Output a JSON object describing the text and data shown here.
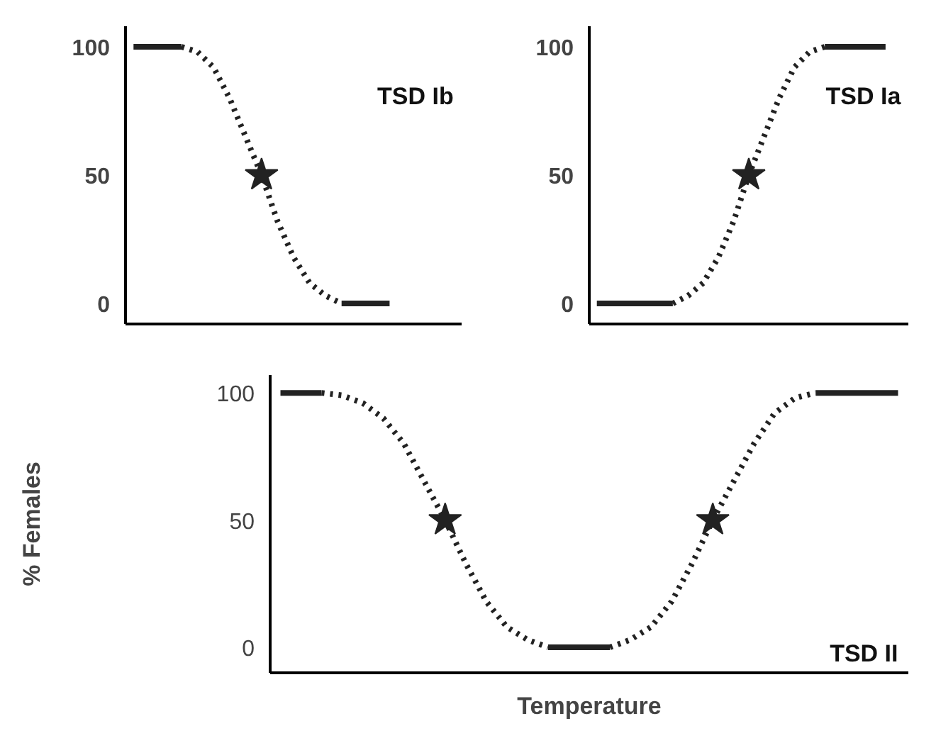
{
  "chart_data": [
    {
      "type": "line",
      "title": "TSD Ib",
      "categories": [
        null,
        null,
        null,
        null,
        null,
        null,
        null,
        null,
        null,
        null,
        null,
        null,
        null,
        null,
        null,
        null,
        null,
        null,
        null,
        null,
        null
      ],
      "ylim": [
        -8,
        108
      ],
      "yticks": [
        0,
        50,
        100
      ],
      "tick_labels": "y",
      "grid": false,
      "series": [
        {
          "color": "#222222",
          "line_style": "solid",
          "values": [
            100,
            100,
            100,
            100,
            null,
            null,
            null,
            null,
            null,
            null,
            null,
            null,
            null,
            null,
            null,
            null,
            null,
            null,
            null,
            null,
            null
          ]
        },
        {
          "color": "#222222",
          "line_style": "solid",
          "values": [
            null,
            null,
            null,
            null,
            null,
            null,
            null,
            null,
            null,
            null,
            null,
            null,
            null,
            0,
            0,
            0,
            0,
            null,
            null,
            null,
            null
          ]
        },
        {
          "color": "#222222",
          "line_style": "dotted",
          "values": [
            null,
            null,
            null,
            100,
            98,
            92,
            80,
            65,
            50,
            32,
            18,
            8,
            3,
            0,
            null,
            null,
            null,
            null,
            null,
            null,
            null
          ]
        },
        {
          "type": "scatter",
          "marker": "star",
          "color": "#222222",
          "values": [
            null,
            null,
            null,
            null,
            null,
            null,
            null,
            null,
            50,
            null,
            null,
            null,
            null,
            null,
            null,
            null,
            null,
            null,
            null,
            null,
            null
          ]
        }
      ]
    },
    {
      "type": "line",
      "title": "TSD Ia",
      "categories": [
        null,
        null,
        null,
        null,
        null,
        null,
        null,
        null,
        null,
        null,
        null,
        null,
        null,
        null,
        null,
        null,
        null,
        null,
        null,
        null,
        null
      ],
      "ylim": [
        -8,
        108
      ],
      "yticks": [
        0,
        50,
        100
      ],
      "tick_labels": "y",
      "grid": false,
      "series": [
        {
          "color": "#222222",
          "line_style": "solid",
          "values": [
            0,
            0,
            0,
            0,
            0,
            0,
            null,
            null,
            null,
            null,
            null,
            null,
            null,
            null,
            null,
            null,
            null,
            null,
            null,
            null,
            null
          ]
        },
        {
          "color": "#222222",
          "line_style": "solid",
          "values": [
            null,
            null,
            null,
            null,
            null,
            null,
            null,
            null,
            null,
            null,
            null,
            null,
            null,
            null,
            null,
            100,
            100,
            100,
            100,
            100,
            null
          ]
        },
        {
          "color": "#222222",
          "line_style": "dotted",
          "values": [
            null,
            null,
            null,
            null,
            null,
            0,
            3,
            8,
            18,
            32,
            50,
            65,
            80,
            92,
            98,
            100,
            null,
            null,
            null,
            null,
            null
          ]
        },
        {
          "type": "scatter",
          "marker": "star",
          "color": "#222222",
          "values": [
            null,
            null,
            null,
            null,
            null,
            null,
            null,
            null,
            null,
            null,
            50,
            null,
            null,
            null,
            null,
            null,
            null,
            null,
            null,
            null,
            null
          ]
        }
      ]
    },
    {
      "type": "line",
      "title": "TSD II",
      "xlabel": "Temperature",
      "ylabel": "% Females",
      "categories": [
        null,
        null,
        null,
        null,
        null,
        null,
        null,
        null,
        null,
        null,
        null,
        null,
        null,
        null,
        null,
        null,
        null,
        null,
        null,
        null,
        null,
        null,
        null,
        null,
        null,
        null,
        null,
        null,
        null,
        null,
        null
      ],
      "ylim": [
        -10,
        107
      ],
      "yticks": [
        0,
        50,
        100
      ],
      "tick_labels": "y",
      "grid": false,
      "series": [
        {
          "color": "#222222",
          "line_style": "solid",
          "values": [
            100,
            100,
            100,
            null,
            null,
            null,
            null,
            null,
            null,
            null,
            null,
            null,
            null,
            null,
            null,
            null,
            null,
            null,
            null,
            null,
            null,
            null,
            null,
            null,
            null,
            null,
            null,
            null,
            null,
            null,
            null
          ]
        },
        {
          "color": "#222222",
          "line_style": "solid",
          "values": [
            null,
            null,
            null,
            null,
            null,
            null,
            null,
            null,
            null,
            null,
            null,
            null,
            null,
            0,
            0,
            0,
            0,
            null,
            null,
            null,
            null,
            null,
            null,
            null,
            null,
            null,
            null,
            null,
            null,
            null,
            null
          ]
        },
        {
          "color": "#222222",
          "line_style": "solid",
          "values": [
            null,
            null,
            null,
            null,
            null,
            null,
            null,
            null,
            null,
            null,
            null,
            null,
            null,
            null,
            null,
            null,
            null,
            null,
            null,
            null,
            null,
            null,
            null,
            null,
            null,
            null,
            100,
            100,
            100,
            100,
            100
          ]
        },
        {
          "color": "#222222",
          "line_style": "dotted",
          "values": [
            null,
            null,
            100,
            99,
            96,
            90,
            80,
            65,
            50,
            33,
            18,
            8,
            3,
            0,
            null,
            null,
            0,
            3,
            8,
            18,
            33,
            50,
            65,
            80,
            92,
            98,
            100,
            null,
            null,
            null,
            null
          ]
        },
        {
          "type": "scatter",
          "marker": "star",
          "color": "#222222",
          "values": [
            null,
            null,
            null,
            null,
            null,
            null,
            null,
            null,
            50,
            null,
            null,
            null,
            null,
            null,
            null,
            null,
            null,
            null,
            null,
            null,
            null,
            50,
            null,
            null,
            null,
            null,
            null,
            null,
            null,
            null,
            null
          ]
        }
      ]
    }
  ]
}
